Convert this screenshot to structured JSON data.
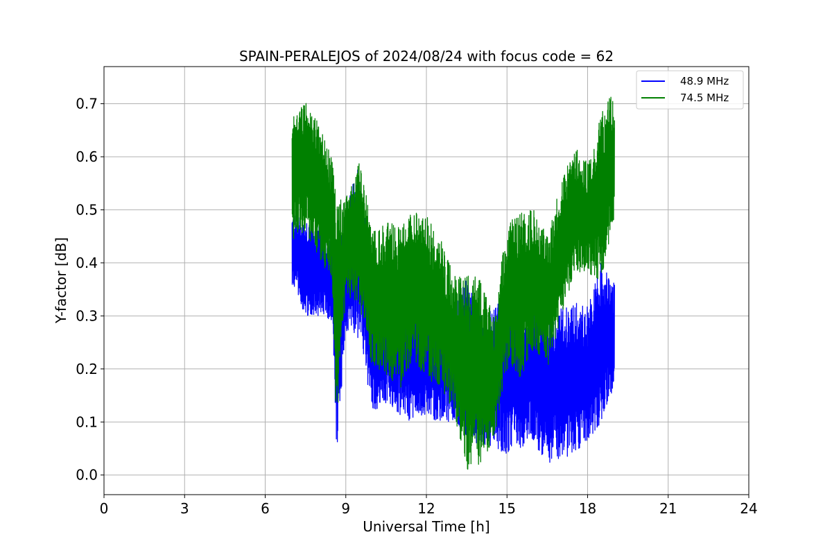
{
  "chart_data": {
    "type": "line",
    "title": "SPAIN-PERALEJOS of 2024/08/24 with focus code = 62",
    "xlabel": "Universal Time [h]",
    "ylabel": "Y-factor [dB]",
    "xlim": [
      0,
      24
    ],
    "ylim": [
      -0.037,
      0.77
    ],
    "xticks": [
      0,
      3,
      6,
      9,
      12,
      15,
      18,
      21,
      24
    ],
    "yticks": [
      0.0,
      0.1,
      0.2,
      0.3,
      0.4,
      0.5,
      0.6,
      0.7
    ],
    "ytick_labels": [
      "0.0",
      "0.1",
      "0.2",
      "0.3",
      "0.4",
      "0.5",
      "0.6",
      "0.7"
    ],
    "grid": true,
    "legend_position": "upper right",
    "series": [
      {
        "name": "48.9 MHz",
        "color": "#0000ff",
        "x": [
          7.0,
          7.5,
          8.0,
          8.5,
          8.65,
          9.0,
          9.5,
          10.0,
          10.5,
          11.0,
          11.5,
          12.0,
          12.5,
          13.0,
          13.5,
          14.0,
          14.5,
          15.0,
          15.5,
          16.0,
          16.5,
          17.0,
          17.5,
          18.0,
          18.5,
          19.0
        ],
        "low": [
          0.36,
          0.3,
          0.3,
          0.29,
          0.035,
          0.27,
          0.25,
          0.12,
          0.13,
          0.11,
          0.1,
          0.11,
          0.1,
          0.1,
          0.06,
          0.06,
          0.05,
          0.04,
          0.05,
          0.06,
          0.02,
          0.03,
          0.04,
          0.06,
          0.1,
          0.17
        ],
        "high": [
          0.49,
          0.49,
          0.47,
          0.45,
          0.44,
          0.5,
          0.6,
          0.33,
          0.4,
          0.35,
          0.35,
          0.31,
          0.3,
          0.32,
          0.37,
          0.32,
          0.31,
          0.36,
          0.32,
          0.33,
          0.3,
          0.32,
          0.33,
          0.32,
          0.4,
          0.36
        ]
      },
      {
        "name": "74.5 MHz",
        "color": "#008000",
        "x": [
          7.0,
          7.5,
          8.0,
          8.5,
          8.65,
          9.0,
          9.5,
          10.0,
          10.5,
          11.0,
          11.5,
          12.0,
          12.5,
          13.0,
          13.5,
          14.0,
          14.5,
          15.0,
          15.5,
          16.0,
          16.5,
          17.0,
          17.5,
          18.0,
          18.5,
          19.0
        ],
        "low": [
          0.44,
          0.46,
          0.41,
          0.36,
          0.07,
          0.34,
          0.32,
          0.2,
          0.19,
          0.16,
          0.22,
          0.18,
          0.17,
          0.12,
          0.01,
          0.02,
          0.06,
          0.2,
          0.18,
          0.24,
          0.2,
          0.29,
          0.38,
          0.38,
          0.36,
          0.48
        ],
        "high": [
          0.68,
          0.71,
          0.66,
          0.6,
          0.52,
          0.52,
          0.6,
          0.46,
          0.48,
          0.47,
          0.5,
          0.49,
          0.45,
          0.38,
          0.38,
          0.37,
          0.3,
          0.47,
          0.5,
          0.5,
          0.45,
          0.55,
          0.62,
          0.59,
          0.68,
          0.73
        ]
      }
    ]
  }
}
